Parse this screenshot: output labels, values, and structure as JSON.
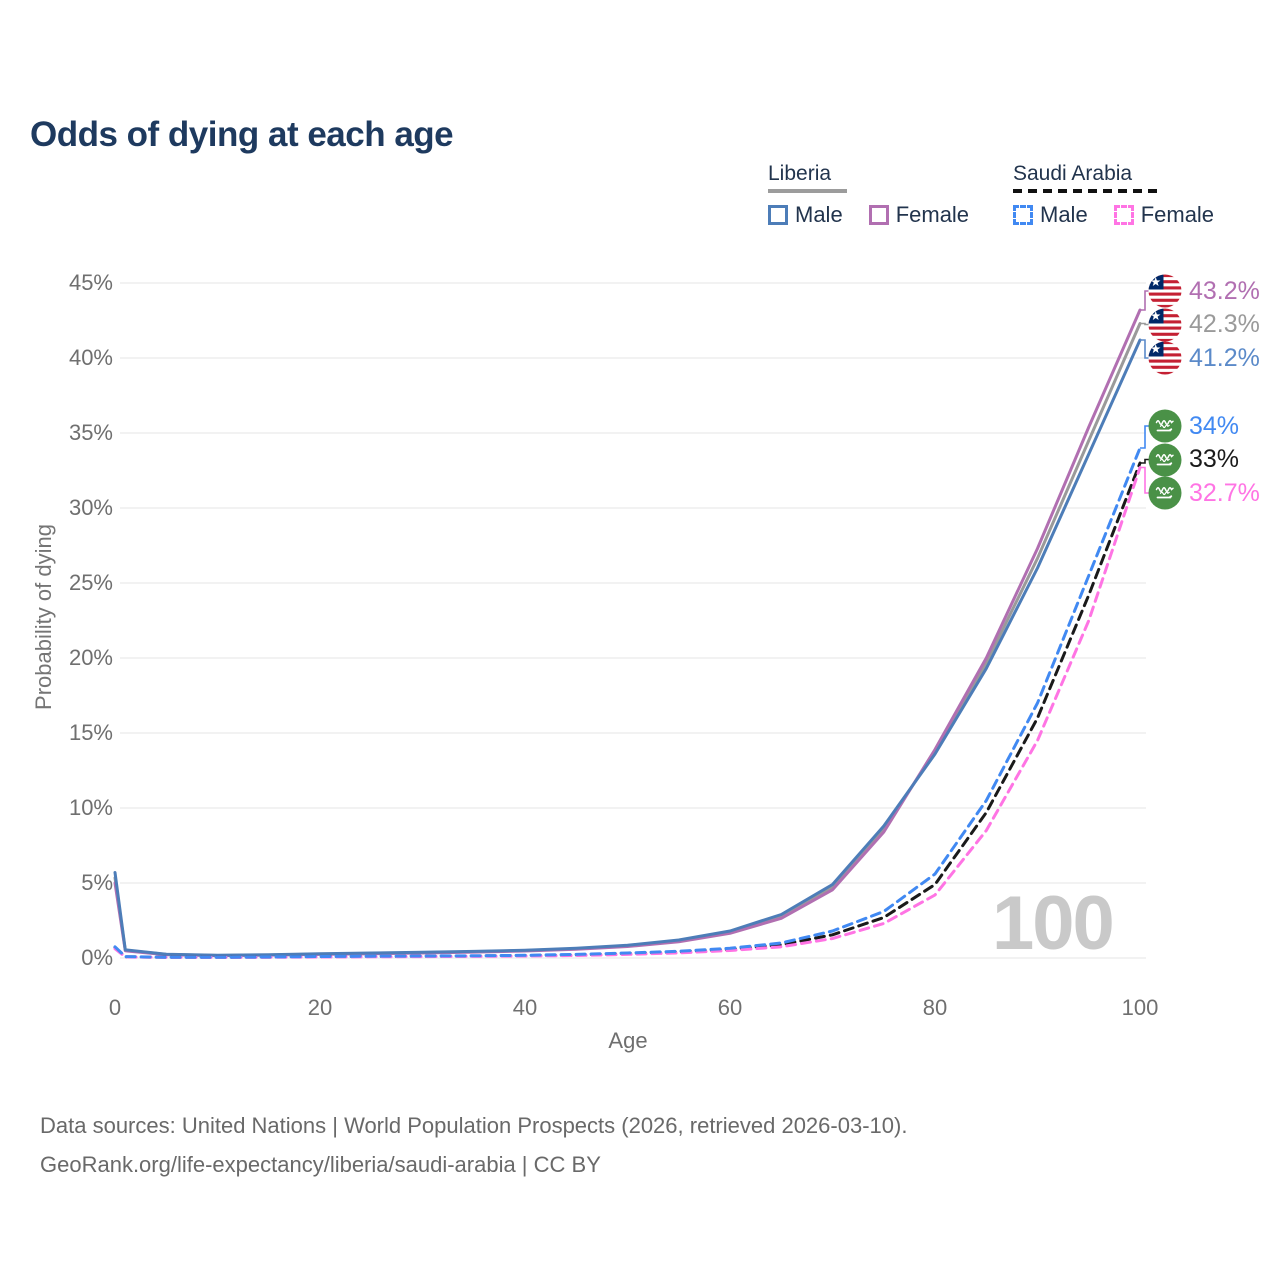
{
  "title": "Odds of dying at each age",
  "legend": {
    "groups": [
      {
        "id": "liberia",
        "label": "Liberia",
        "line_style": "solid",
        "underline_color": "#9c9c9c",
        "items": [
          {
            "label": "Male",
            "color": "#4d7db8"
          },
          {
            "label": "Female",
            "color": "#b16fb1"
          }
        ]
      },
      {
        "id": "saudi-arabia",
        "label": "Saudi Arabia",
        "line_style": "dashed",
        "underline_color": "#111111",
        "items": [
          {
            "label": "Male",
            "color": "#4189f2"
          },
          {
            "label": "Female",
            "color": "#ff74e4"
          }
        ]
      }
    ]
  },
  "chart_data": {
    "type": "line",
    "title": "Odds of dying at each age",
    "xlabel": "Age",
    "ylabel": "Probability of dying",
    "xlim": [
      0,
      100
    ],
    "ylim": [
      0,
      45
    ],
    "x_ticks": [
      "0",
      "20",
      "40",
      "60",
      "80",
      "100"
    ],
    "y_ticks": [
      "0%",
      "5%",
      "10%",
      "15%",
      "20%",
      "25%",
      "30%",
      "35%",
      "40%",
      "45%"
    ],
    "grid": "horizontal",
    "legend_position": "top-right",
    "watermark": "100",
    "ages": [
      0,
      1,
      5,
      10,
      15,
      20,
      25,
      30,
      35,
      40,
      45,
      50,
      55,
      60,
      65,
      70,
      75,
      80,
      85,
      90,
      95,
      100
    ],
    "series": [
      {
        "name": "Liberia Both sexes",
        "country": "Liberia",
        "sex": "Both",
        "color": "#9a9a9a",
        "dash": "solid",
        "end_label": "42.3%",
        "values": [
          5.35,
          0.52,
          0.24,
          0.17,
          0.2,
          0.26,
          0.3,
          0.36,
          0.42,
          0.5,
          0.62,
          0.81,
          1.14,
          1.73,
          2.78,
          4.7,
          8.6,
          13.75,
          19.65,
          26.65,
          34.5,
          42.3
        ]
      },
      {
        "name": "Liberia Female",
        "country": "Liberia",
        "sex": "Female",
        "color": "#b16fb1",
        "dash": "solid",
        "end_label": "43.2%",
        "values": [
          5.0,
          0.48,
          0.22,
          0.16,
          0.19,
          0.24,
          0.28,
          0.33,
          0.39,
          0.47,
          0.58,
          0.77,
          1.08,
          1.65,
          2.65,
          4.55,
          8.4,
          13.9,
          20.0,
          27.3,
          35.4,
          43.2
        ]
      },
      {
        "name": "Liberia Male",
        "country": "Liberia",
        "sex": "Male",
        "color": "#4d7db8",
        "dash": "solid",
        "end_label": "41.2%",
        "values": [
          5.7,
          0.55,
          0.25,
          0.18,
          0.22,
          0.28,
          0.33,
          0.38,
          0.44,
          0.52,
          0.65,
          0.85,
          1.2,
          1.8,
          2.9,
          4.9,
          8.8,
          13.6,
          19.3,
          26.0,
          33.6,
          41.2
        ]
      },
      {
        "name": "Saudi Arabia Both sexes",
        "country": "Saudi Arabia",
        "sex": "Both",
        "color": "#1a1a1a",
        "dash": "dashed",
        "end_label": "33%",
        "values": [
          0.69,
          0.08,
          0.045,
          0.045,
          0.06,
          0.085,
          0.1,
          0.11,
          0.13,
          0.16,
          0.2,
          0.29,
          0.4,
          0.58,
          0.88,
          1.55,
          2.7,
          4.9,
          9.7,
          16.0,
          24.2,
          33.0
        ]
      },
      {
        "name": "Saudi Arabia Female",
        "country": "Saudi Arabia",
        "sex": "Female",
        "color": "#ff74e4",
        "dash": "dashed",
        "end_label": "32.7%",
        "values": [
          0.62,
          0.07,
          0.04,
          0.04,
          0.05,
          0.07,
          0.08,
          0.09,
          0.11,
          0.13,
          0.17,
          0.24,
          0.34,
          0.5,
          0.75,
          1.3,
          2.3,
          4.2,
          8.5,
          14.5,
          22.5,
          32.7
        ]
      },
      {
        "name": "Saudi Arabia Male",
        "country": "Saudi Arabia",
        "sex": "Male",
        "color": "#4189f2",
        "dash": "dashed",
        "end_label": "34%",
        "values": [
          0.75,
          0.09,
          0.05,
          0.05,
          0.07,
          0.1,
          0.12,
          0.13,
          0.15,
          0.18,
          0.24,
          0.33,
          0.45,
          0.65,
          1.0,
          1.8,
          3.1,
          5.6,
          10.5,
          17.0,
          25.5,
          34.0
        ]
      }
    ],
    "annotations": [
      {
        "label": "43.2%",
        "flag": "liberia",
        "color": "#b16fb1",
        "value": 43.2
      },
      {
        "label": "42.3%",
        "flag": "liberia",
        "color": "#9a9a9a",
        "value": 42.3
      },
      {
        "label": "41.2%",
        "flag": "liberia",
        "color": "#5b8ac9",
        "value": 41.2
      },
      {
        "label": "34%",
        "flag": "saudi-arabia",
        "color": "#4189f2",
        "value": 34
      },
      {
        "label": "33%",
        "flag": "saudi-arabia",
        "color": "#1a1a1a",
        "value": 33
      },
      {
        "label": "32.7%",
        "flag": "saudi-arabia",
        "color": "#ff74e4",
        "value": 32.7
      }
    ],
    "flag_colors": {
      "liberia_red": "#c42033",
      "liberia_blue": "#002868",
      "saudi_green": "#4a9147"
    }
  },
  "footer": {
    "line1": "Data sources: United Nations | World Population Prospects (2026, retrieved 2026-03-10).",
    "line2": "GeoRank.org/life-expectancy/liberia/saudi-arabia | CC BY"
  }
}
